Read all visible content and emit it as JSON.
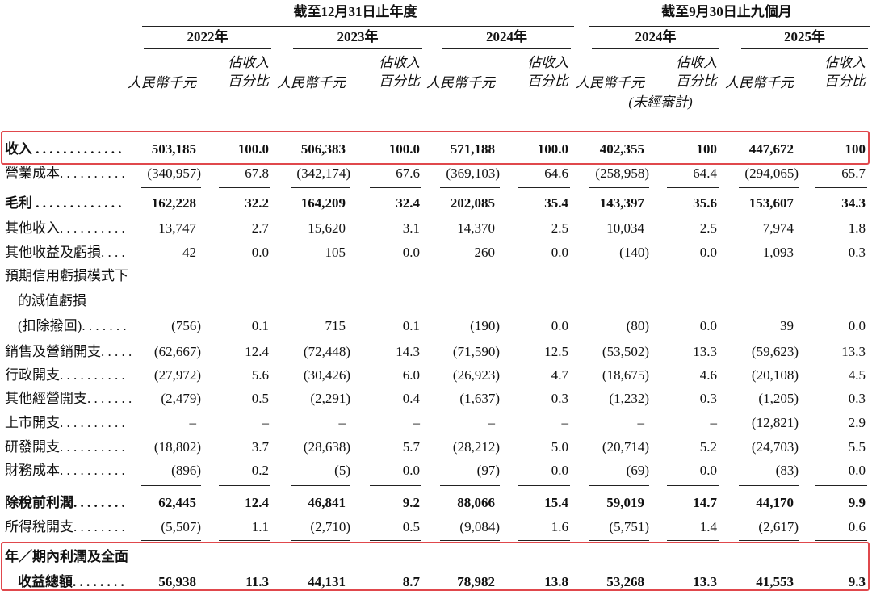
{
  "header": {
    "group1": "截至12月31日止年度",
    "group2": "截至9月30日止九個月",
    "columns": [
      {
        "year": "2022年",
        "amount": "人民幣千元",
        "pct_line1": "佔收入",
        "pct_line2": "百分比"
      },
      {
        "year": "2023年",
        "amount": "人民幣千元",
        "pct_line1": "佔收入",
        "pct_line2": "百分比"
      },
      {
        "year": "2024年",
        "amount": "人民幣千元",
        "pct_line1": "佔收入",
        "pct_line2": "百分比"
      },
      {
        "year": "2024年",
        "amount": "人民幣千元",
        "pct_line1": "佔收入",
        "pct_line2": "百分比",
        "note": "(未經審計)"
      },
      {
        "year": "2025年",
        "amount": "人民幣千元",
        "pct_line1": "佔收入",
        "pct_line2": "百分比"
      }
    ]
  },
  "table": {
    "rows": [
      {
        "label": [
          "收入 . . . . . . . . . . . . ."
        ],
        "bold": true,
        "values": [
          "503,185",
          "100.0",
          "506,383",
          "100.0",
          "571,188",
          "100.0",
          "402,355",
          "100",
          "447,672",
          "100"
        ]
      },
      {
        "label": [
          "營業成本. . . . . . . . . ."
        ],
        "values": [
          "(340,957)",
          "67.8",
          "(342,174)",
          "67.6",
          "(369,103)",
          "64.6",
          "(258,958)",
          "64.4",
          "(294,065)",
          "65.7"
        ]
      },
      {
        "label": [
          "毛利 . . . . . . . . . . . . ."
        ],
        "bold": true,
        "values": [
          "162,228",
          "32.2",
          "164,209",
          "32.4",
          "202,085",
          "35.4",
          "143,397",
          "35.6",
          "153,607",
          "34.3"
        ]
      },
      {
        "label": [
          "其他收入. . . . . . . . . ."
        ],
        "values": [
          "13,747",
          "2.7",
          "15,620",
          "3.1",
          "14,370",
          "2.5",
          "10,034",
          "2.5",
          "7,974",
          "1.8"
        ]
      },
      {
        "label": [
          "其他收益及虧損. . . ."
        ],
        "values": [
          "42",
          "0.0",
          "105",
          "0.0",
          "260",
          "0.0",
          "(140)",
          "0.0",
          "1,093",
          "0.3"
        ]
      },
      {
        "label": [
          "預期信用虧損模式下",
          "的減值虧損",
          "(扣除撥回). . . . . . ."
        ],
        "values": [
          "(756)",
          "0.1",
          "715",
          "0.1",
          "(190)",
          "0.0",
          "(80)",
          "0.0",
          "39",
          "0.0"
        ]
      },
      {
        "label": [
          "銷售及營銷開支. . . . ."
        ],
        "values": [
          "(62,667)",
          "12.4",
          "(72,448)",
          "14.3",
          "(71,590)",
          "12.5",
          "(53,502)",
          "13.3",
          "(59,623)",
          "13.3"
        ]
      },
      {
        "label": [
          "行政開支. . . . . . . . . ."
        ],
        "values": [
          "(27,972)",
          "5.6",
          "(30,426)",
          "6.0",
          "(26,923)",
          "4.7",
          "(18,675)",
          "4.6",
          "(20,108)",
          "4.5"
        ]
      },
      {
        "label": [
          "其他經營開支. . . . . . ."
        ],
        "values": [
          "(2,479)",
          "0.5",
          "(2,291)",
          "0.4",
          "(1,637)",
          "0.3",
          "(1,232)",
          "0.3",
          "(1,205)",
          "0.3"
        ]
      },
      {
        "label": [
          "上市開支. . . . . . . . . ."
        ],
        "values": [
          "–",
          "–",
          "–",
          "–",
          "–",
          "–",
          "–",
          "–",
          "(12,821)",
          "2.9"
        ]
      },
      {
        "label": [
          "研發開支. . . . . . . . . ."
        ],
        "values": [
          "(18,802)",
          "3.7",
          "(28,638)",
          "5.7",
          "(28,212)",
          "5.0",
          "(20,714)",
          "5.2",
          "(24,703)",
          "5.5"
        ]
      },
      {
        "label": [
          "財務成本. . . . . . . . . ."
        ],
        "values": [
          "(896)",
          "0.2",
          "(5)",
          "0.0",
          "(97)",
          "0.0",
          "(69)",
          "0.0",
          "(83)",
          "0.0"
        ]
      },
      {
        "label": [
          "除稅前利潤. . . . . . . ."
        ],
        "bold": true,
        "values": [
          "62,445",
          "12.4",
          "46,841",
          "9.2",
          "88,066",
          "15.4",
          "59,019",
          "14.7",
          "44,170",
          "9.9"
        ]
      },
      {
        "label": [
          "所得稅開支. . . . . . . ."
        ],
        "values": [
          "(5,507)",
          "1.1",
          "(2,710)",
          "0.5",
          "(9,084)",
          "1.6",
          "(5,751)",
          "1.4",
          "(2,617)",
          "0.6"
        ]
      },
      {
        "label": [
          "年／期內利潤及全面",
          "收益總額. . . . . . . ."
        ],
        "bold": true,
        "values": [
          "56,938",
          "11.3",
          "44,131",
          "8.7",
          "78,982",
          "13.8",
          "53,268",
          "13.3",
          "41,553",
          "9.3"
        ]
      }
    ]
  }
}
